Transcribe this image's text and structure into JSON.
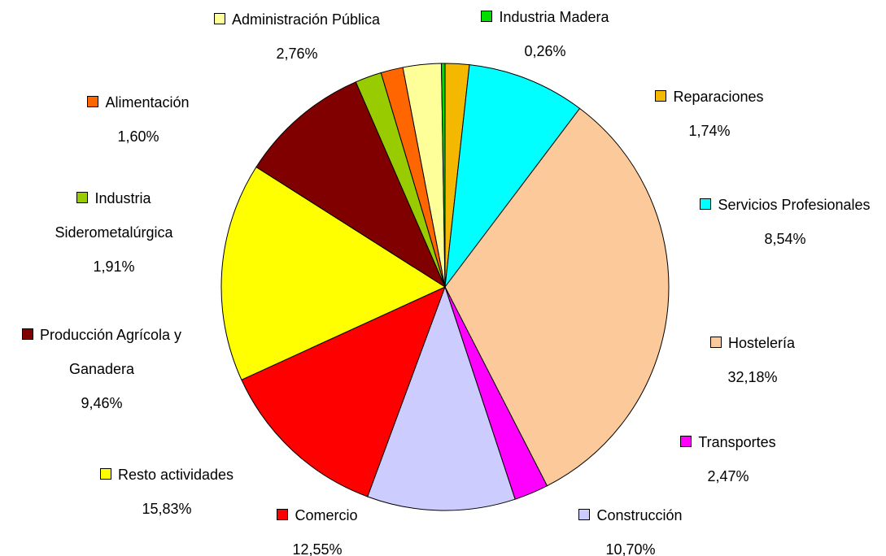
{
  "chart_data": {
    "type": "pie",
    "categories": [
      "Reparaciones",
      "Servicios Profesionales",
      "Hostelería",
      "Transportes",
      "Construcción",
      "Comercio",
      "Resto actividades",
      "Producción Agrícola y Ganadera",
      "Industria Siderometalúrgica",
      "Alimentación",
      "Administración Pública",
      "Industria Madera"
    ],
    "values": [
      1.74,
      8.54,
      32.18,
      2.47,
      10.7,
      12.55,
      15.83,
      9.46,
      1.91,
      1.6,
      2.76,
      0.26
    ],
    "value_labels": [
      "1,74%",
      "8,54%",
      "32,18%",
      "2,47%",
      "10,70%",
      "12,55%",
      "15,83%",
      "9,46%",
      "1,91%",
      "1,60%",
      "2,76%",
      "0,26%"
    ],
    "colors": [
      "#f5b800",
      "#00ffff",
      "#fcc99b",
      "#ff00ff",
      "#ccccff",
      "#ff0000",
      "#ffff00",
      "#800000",
      "#99cc00",
      "#ff6600",
      "#ffff99",
      "#00dd00"
    ]
  }
}
